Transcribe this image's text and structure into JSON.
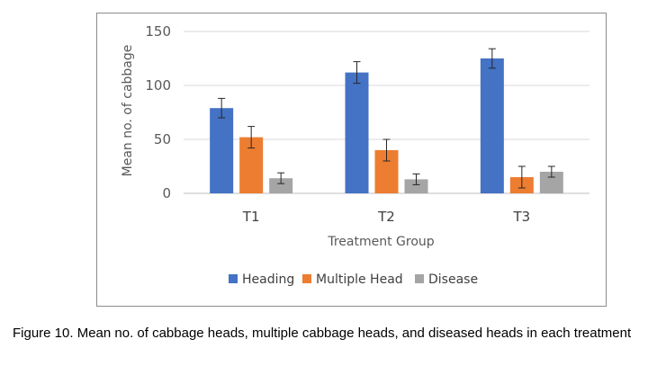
{
  "chart_data": {
    "type": "bar",
    "title": "",
    "xlabel": "Treatment Group",
    "ylabel": "Mean no. of cabbage",
    "categories": [
      "T1",
      "T2",
      "T3"
    ],
    "ylim": [
      0,
      150
    ],
    "yticks": [
      0,
      50,
      100,
      150
    ],
    "grid": true,
    "legend_position": "bottom",
    "series": [
      {
        "name": "Heading",
        "color": "#4472c4",
        "values": [
          79,
          112,
          125
        ],
        "errors": [
          9,
          10,
          9
        ]
      },
      {
        "name": "Multiple Head",
        "color": "#ed7d31",
        "values": [
          52,
          40,
          15
        ],
        "errors": [
          10,
          10,
          10
        ]
      },
      {
        "name": "Disease",
        "color": "#a5a5a5",
        "values": [
          14,
          13,
          20
        ],
        "errors": [
          5,
          5,
          5
        ]
      }
    ]
  },
  "caption": "Figure 10. Mean no. of cabbage heads, multiple cabbage heads, and diseased heads in each treatment"
}
